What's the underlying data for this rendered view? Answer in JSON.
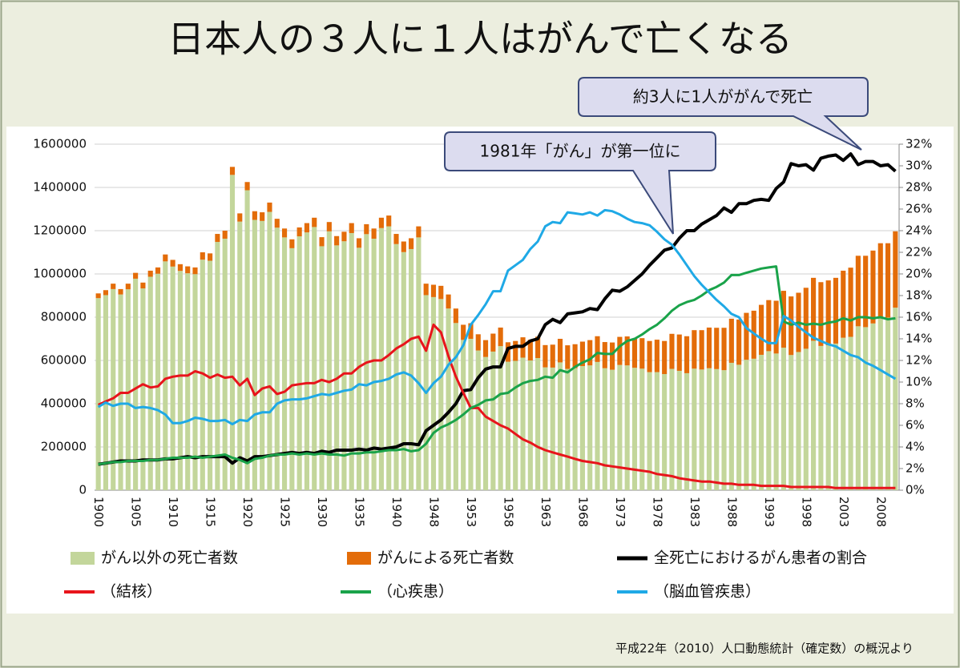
{
  "chart_data": {
    "type": "bar",
    "title": "日本人の３人に１人はがんで亡くなる",
    "annotations": [
      {
        "text": "1981年「がん」が第一位に"
      },
      {
        "text": "約3人に1人ががんで死亡"
      }
    ],
    "source": "平成22年（2010）人口動態統計（確定数）の概況より",
    "categories": [
      "1900",
      null,
      null,
      null,
      null,
      "1905",
      null,
      null,
      null,
      null,
      "1910",
      null,
      null,
      null,
      null,
      "1915",
      null,
      null,
      null,
      null,
      "1920",
      null,
      null,
      null,
      null,
      "1925",
      null,
      null,
      null,
      null,
      "1930",
      null,
      null,
      null,
      null,
      "1935",
      null,
      null,
      null,
      null,
      "1940",
      null,
      null,
      null,
      null,
      "1948",
      null,
      null,
      null,
      null,
      "1953",
      null,
      null,
      null,
      null,
      "1958",
      null,
      null,
      null,
      null,
      "1963",
      null,
      null,
      null,
      null,
      "1968",
      null,
      null,
      null,
      null,
      "1973",
      null,
      null,
      null,
      null,
      "1978",
      null,
      null,
      null,
      null,
      "1983",
      null,
      null,
      null,
      null,
      "1988",
      null,
      null,
      null,
      null,
      "1993",
      null,
      null,
      null,
      null,
      "1998",
      null,
      null,
      null,
      null,
      "2003",
      null,
      null,
      null,
      null,
      "2008",
      null,
      null
    ],
    "ylim": [
      0,
      1600000
    ],
    "yticks": [
      0,
      200000,
      400000,
      600000,
      800000,
      1000000,
      1200000,
      1400000,
      1600000
    ],
    "y2lim": [
      0,
      32
    ],
    "y2ticks": [
      {
        "value": 0,
        "label": "0%"
      },
      {
        "value": 2,
        "label": "2%"
      },
      {
        "value": 4,
        "label": "4%"
      },
      {
        "value": 6,
        "label": "6%"
      },
      {
        "value": 8,
        "label": "8%"
      },
      {
        "value": 10,
        "label": "10%"
      },
      {
        "value": 12,
        "label": "12%"
      },
      {
        "value": 14,
        "label": "14%"
      },
      {
        "value": 16,
        "label": "16%"
      },
      {
        "value": 18,
        "label": "18%"
      },
      {
        "value": 20,
        "label": "20%"
      },
      {
        "value": 22,
        "label": "22%"
      },
      {
        "value": 24,
        "label": "24%"
      },
      {
        "value": 26,
        "label": "26%"
      },
      {
        "value": 28,
        "label": "28%"
      },
      {
        "value": 30,
        "label": "30%"
      },
      {
        "value": 32,
        "label": "32%"
      }
    ],
    "grid": true,
    "series": [
      {
        "name": "がん以外の死亡者数",
        "type": "bar",
        "color": "#c3d69b",
        "values": [
          888000,
          902000,
          930000,
          905000,
          929000,
          978000,
          933000,
          987000,
          1001000,
          1058000,
          1034000,
          1014000,
          1003000,
          999000,
          1066000,
          1061000,
          1148000,
          1163000,
          1458000,
          1242000,
          1387000,
          1250000,
          1245000,
          1287000,
          1214000,
          1169000,
          1119000,
          1174000,
          1192000,
          1217000,
          1128000,
          1197000,
          1132000,
          1151000,
          1189000,
          1121000,
          1184000,
          1163000,
          1212000,
          1220000,
          1138000,
          1101000,
          1115000,
          1169000,
          902000,
          893000,
          884000,
          840000,
          773000,
          695000,
          700000,
          646000,
          616000,
          641000,
          666000,
          594000,
          598000,
          613000,
          600000,
          611000,
          568000,
          567000,
          591000,
          561000,
          564000,
          574000,
          577000,
          593000,
          564000,
          557000,
          579000,
          577000,
          566000,
          562000,
          546000,
          546000,
          537000,
          561000,
          552000,
          541000,
          562000,
          558000,
          564000,
          560000,
          555000,
          589000,
          580000,
          603000,
          608000,
          626000,
          643000,
          632000,
          659000,
          625000,
          639000,
          654000,
          691000,
          667000,
          670000,
          678000,
          705000,
          709000,
          758000,
          754000,
          771000,
          799000,
          798000,
          844000
        ]
      },
      {
        "name": "がんによる死亡者数",
        "type": "bar",
        "color": "#e36c09",
        "values": [
          22000,
          23000,
          25000,
          25000,
          26000,
          27000,
          27000,
          28000,
          29000,
          32000,
          31000,
          31000,
          32000,
          31000,
          34000,
          34000,
          37000,
          37000,
          37000,
          38000,
          38000,
          40000,
          40000,
          43000,
          41000,
          41000,
          41000,
          41000,
          43000,
          43000,
          42000,
          43000,
          43000,
          44000,
          46000,
          44000,
          46000,
          47000,
          48000,
          50000,
          47000,
          49000,
          50000,
          51000,
          53000,
          57000,
          61000,
          65000,
          67000,
          70000,
          72000,
          75000,
          78000,
          83000,
          86000,
          90000,
          92000,
          94000,
          96000,
          99000,
          103000,
          106000,
          109000,
          109000,
          111000,
          113000,
          117000,
          119000,
          121000,
          126000,
          130000,
          134000,
          136000,
          141000,
          144000,
          150000,
          153000,
          162000,
          168000,
          171000,
          178000,
          182000,
          188000,
          191000,
          196000,
          204000,
          209000,
          217000,
          222000,
          231000,
          236000,
          244000,
          263000,
          271000,
          274000,
          282000,
          291000,
          295000,
          300000,
          304000,
          310000,
          320000,
          326000,
          330000,
          337000,
          343000,
          344000,
          353000
        ]
      },
      {
        "name": "全死亡におけるがん患者の割合",
        "type": "line",
        "axis": "y2",
        "color": "#000000",
        "width": 4,
        "values": [
          2.4,
          2.5,
          2.6,
          2.7,
          2.7,
          2.7,
          2.8,
          2.8,
          2.8,
          2.9,
          2.9,
          3.0,
          3.1,
          3.0,
          3.1,
          3.1,
          3.1,
          3.1,
          2.5,
          3.0,
          2.7,
          3.1,
          3.1,
          3.2,
          3.3,
          3.4,
          3.5,
          3.4,
          3.5,
          3.4,
          3.6,
          3.5,
          3.7,
          3.7,
          3.7,
          3.8,
          3.7,
          3.9,
          3.8,
          3.9,
          4.0,
          4.3,
          4.3,
          4.2,
          5.5,
          6.0,
          6.5,
          7.2,
          8.0,
          9.2,
          9.3,
          10.4,
          11.2,
          11.4,
          11.4,
          13.1,
          13.3,
          13.3,
          13.8,
          14.0,
          15.3,
          15.8,
          15.5,
          16.3,
          16.4,
          16.5,
          16.8,
          16.7,
          17.7,
          18.5,
          18.4,
          18.8,
          19.4,
          20.0,
          20.8,
          21.5,
          22.2,
          22.4,
          23.3,
          24.0,
          24.0,
          24.6,
          25.0,
          25.4,
          26.1,
          25.7,
          26.5,
          26.5,
          26.8,
          26.9,
          26.8,
          27.9,
          28.5,
          30.2,
          30.0,
          30.1,
          29.6,
          30.7,
          30.9,
          31.0,
          30.5,
          31.1,
          30.1,
          30.4,
          30.4,
          30.0,
          30.1,
          29.5
        ]
      },
      {
        "name": "（結核）",
        "type": "line",
        "axis": "y2",
        "color": "#e8141b",
        "width": 3,
        "values": [
          7.9,
          8.2,
          8.5,
          9.0,
          9.0,
          9.4,
          9.8,
          9.5,
          9.6,
          10.3,
          10.5,
          10.6,
          10.6,
          11.0,
          10.8,
          10.4,
          10.7,
          10.4,
          10.5,
          9.7,
          10.3,
          8.8,
          9.4,
          9.6,
          8.9,
          9.1,
          9.7,
          9.8,
          9.9,
          9.9,
          10.2,
          10.0,
          10.3,
          10.8,
          10.8,
          11.4,
          11.8,
          12.0,
          12.0,
          12.5,
          13.1,
          13.5,
          14.0,
          14.2,
          12.9,
          15.3,
          14.6,
          12.4,
          10.5,
          9.0,
          7.6,
          7.6,
          6.8,
          6.4,
          6.0,
          5.7,
          5.2,
          4.7,
          4.4,
          4.0,
          3.7,
          3.5,
          3.3,
          3.1,
          2.9,
          2.7,
          2.6,
          2.5,
          2.3,
          2.2,
          2.1,
          2.0,
          1.9,
          1.8,
          1.7,
          1.5,
          1.4,
          1.3,
          1.1,
          1.0,
          0.9,
          0.8,
          0.8,
          0.7,
          0.6,
          0.6,
          0.5,
          0.5,
          0.5,
          0.4,
          0.4,
          0.4,
          0.4,
          0.3,
          0.3,
          0.3,
          0.3,
          0.3,
          0.3,
          0.2,
          0.2,
          0.2,
          0.2,
          0.2,
          0.2,
          0.2,
          0.2,
          0.2
        ]
      },
      {
        "name": "（心疾患）",
        "type": "line",
        "axis": "y2",
        "color": "#1aa34a",
        "width": 3,
        "values": [
          2.4,
          2.5,
          2.6,
          2.6,
          2.7,
          2.7,
          2.7,
          2.8,
          2.8,
          2.9,
          3.0,
          3.0,
          3.0,
          3.1,
          3.0,
          3.1,
          3.2,
          3.3,
          3.0,
          2.8,
          2.5,
          2.9,
          3.0,
          3.2,
          3.3,
          3.3,
          3.4,
          3.3,
          3.4,
          3.3,
          3.4,
          3.3,
          3.3,
          3.2,
          3.4,
          3.4,
          3.5,
          3.5,
          3.6,
          3.7,
          3.7,
          3.8,
          3.6,
          3.7,
          4.3,
          5.3,
          5.8,
          6.1,
          6.5,
          7.0,
          7.6,
          7.9,
          8.3,
          8.4,
          8.9,
          9.0,
          9.5,
          9.9,
          10.1,
          10.2,
          10.5,
          10.4,
          11.1,
          10.9,
          11.4,
          11.8,
          12.1,
          12.7,
          12.6,
          12.6,
          13.3,
          13.8,
          14.0,
          14.4,
          14.9,
          15.3,
          15.9,
          16.6,
          17.1,
          17.4,
          17.6,
          18.0,
          18.5,
          18.8,
          19.2,
          19.9,
          19.9,
          20.1,
          20.3,
          20.5,
          20.6,
          20.7,
          15.6,
          15.3,
          15.5,
          15.3,
          15.4,
          15.3,
          15.5,
          15.6,
          15.9,
          15.7,
          16.0,
          16.0,
          15.9,
          16.0,
          15.8,
          15.9
        ]
      },
      {
        "name": "（脳血管疾患）",
        "type": "line",
        "axis": "y2",
        "color": "#1fa9e6",
        "width": 3,
        "values": [
          7.7,
          8.1,
          7.8,
          8.0,
          8.0,
          7.6,
          7.7,
          7.6,
          7.4,
          7.0,
          6.2,
          6.2,
          6.4,
          6.7,
          6.6,
          6.4,
          6.4,
          6.5,
          6.1,
          6.5,
          6.4,
          7.0,
          7.2,
          7.2,
          8.0,
          8.3,
          8.4,
          8.4,
          8.5,
          8.7,
          8.9,
          8.8,
          9.0,
          9.2,
          9.3,
          9.8,
          9.7,
          10.0,
          10.1,
          10.3,
          10.7,
          10.9,
          10.6,
          9.9,
          9.0,
          9.9,
          10.5,
          11.6,
          12.3,
          13.4,
          15.3,
          16.2,
          17.2,
          18.4,
          18.4,
          20.3,
          20.8,
          21.3,
          22.3,
          23.0,
          24.4,
          24.8,
          24.7,
          25.7,
          25.6,
          25.5,
          25.7,
          25.4,
          25.9,
          25.8,
          25.5,
          25.1,
          24.8,
          24.7,
          24.5,
          23.9,
          23.2,
          22.7,
          21.8,
          20.8,
          19.8,
          19.0,
          18.3,
          17.6,
          17.0,
          16.3,
          16.0,
          15.0,
          14.5,
          14.0,
          13.6,
          13.6,
          16.1,
          15.7,
          15.1,
          14.6,
          14.1,
          13.8,
          13.5,
          13.3,
          12.9,
          12.5,
          12.3,
          11.8,
          11.5,
          11.1,
          10.7,
          10.3
        ]
      }
    ]
  }
}
